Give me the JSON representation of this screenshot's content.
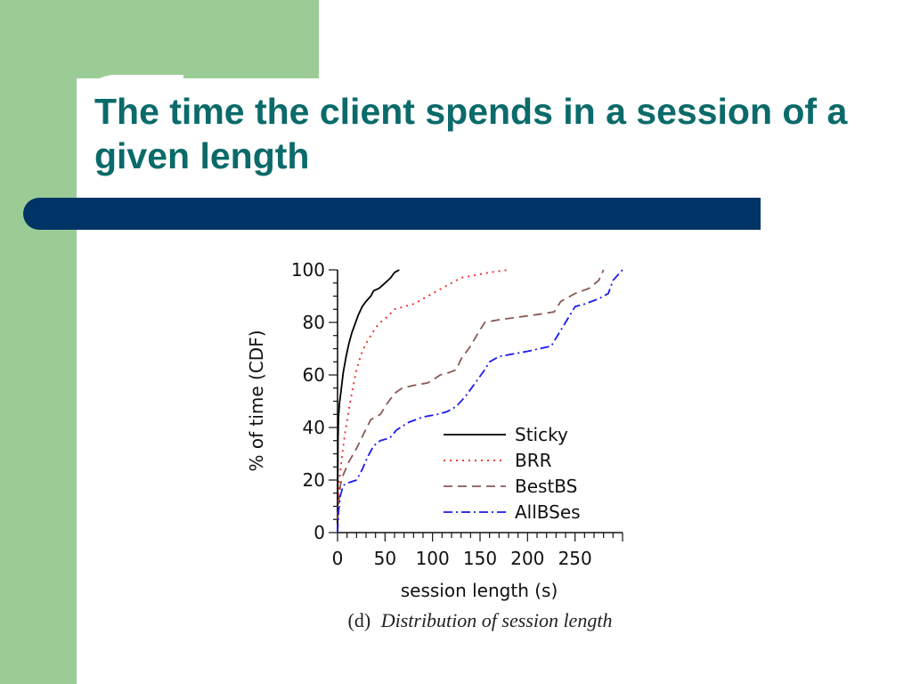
{
  "slide": {
    "title": "The time the client spends in a session of a given length",
    "colors": {
      "title": "#0b6a6a",
      "accent_green": "#9ccc95",
      "bar_navy": "#003466"
    }
  },
  "chart_data": {
    "type": "line",
    "xlabel": "session length (s)",
    "ylabel": "% of time (CDF)",
    "caption_prefix": "(d)",
    "caption": "Distribution of session length",
    "xlim": [
      0,
      300
    ],
    "ylim": [
      0,
      100
    ],
    "xticks": [
      0,
      50,
      100,
      150,
      200,
      250
    ],
    "xtick_labels": [
      "0",
      "50",
      "100",
      "150",
      "200",
      "250"
    ],
    "yticks": [
      0,
      20,
      40,
      60,
      80,
      100
    ],
    "ytick_labels": [
      "0",
      "20",
      "40",
      "60",
      "80",
      "100"
    ],
    "legend_position": "right",
    "series": [
      {
        "name": "Sticky",
        "color": "#000000",
        "dash": "solid",
        "points": [
          [
            0,
            0
          ],
          [
            0.5,
            35
          ],
          [
            1,
            44
          ],
          [
            2,
            49
          ],
          [
            4,
            55
          ],
          [
            6,
            61
          ],
          [
            9,
            67
          ],
          [
            12,
            72
          ],
          [
            15,
            76
          ],
          [
            18,
            79
          ],
          [
            22,
            83
          ],
          [
            26,
            86
          ],
          [
            30,
            88
          ],
          [
            35,
            90
          ],
          [
            38,
            92
          ],
          [
            44,
            93
          ],
          [
            50,
            95
          ],
          [
            56,
            97
          ],
          [
            60,
            99
          ],
          [
            65,
            100
          ]
        ]
      },
      {
        "name": "BRR",
        "color": "#ee2222",
        "dash": "dotted",
        "points": [
          [
            0,
            0
          ],
          [
            0.5,
            10
          ],
          [
            2,
            20
          ],
          [
            5,
            30
          ],
          [
            8,
            38
          ],
          [
            12,
            47
          ],
          [
            16,
            55
          ],
          [
            20,
            62
          ],
          [
            25,
            68
          ],
          [
            30,
            72
          ],
          [
            35,
            75
          ],
          [
            40,
            78
          ],
          [
            45,
            80
          ],
          [
            52,
            82
          ],
          [
            60,
            85
          ],
          [
            70,
            86
          ],
          [
            80,
            87
          ],
          [
            90,
            89
          ],
          [
            100,
            91
          ],
          [
            110,
            93
          ],
          [
            120,
            95
          ],
          [
            130,
            97
          ],
          [
            145,
            98
          ],
          [
            160,
            99
          ],
          [
            180,
            100
          ]
        ]
      },
      {
        "name": "BestBS",
        "color": "#8a5a55",
        "dash": "dashed",
        "points": [
          [
            0,
            0
          ],
          [
            1,
            10
          ],
          [
            3,
            18
          ],
          [
            6,
            22
          ],
          [
            12,
            27
          ],
          [
            20,
            32
          ],
          [
            28,
            38
          ],
          [
            35,
            43
          ],
          [
            45,
            45
          ],
          [
            52,
            49
          ],
          [
            60,
            53
          ],
          [
            68,
            55
          ],
          [
            80,
            56
          ],
          [
            95,
            57
          ],
          [
            100,
            58
          ],
          [
            108,
            60
          ],
          [
            118,
            61
          ],
          [
            125,
            62
          ],
          [
            130,
            66
          ],
          [
            140,
            71
          ],
          [
            148,
            76
          ],
          [
            155,
            80
          ],
          [
            170,
            81
          ],
          [
            190,
            82
          ],
          [
            210,
            83
          ],
          [
            228,
            84
          ],
          [
            235,
            88
          ],
          [
            250,
            91
          ],
          [
            265,
            93
          ],
          [
            275,
            96
          ],
          [
            280,
            100
          ]
        ]
      },
      {
        "name": "AllBSes",
        "color": "#1a1aee",
        "dash": "dashdot",
        "points": [
          [
            0,
            0
          ],
          [
            1,
            8
          ],
          [
            3,
            14
          ],
          [
            6,
            18
          ],
          [
            12,
            19
          ],
          [
            20,
            20
          ],
          [
            26,
            24
          ],
          [
            32,
            29
          ],
          [
            38,
            33
          ],
          [
            45,
            35
          ],
          [
            55,
            36
          ],
          [
            62,
            39
          ],
          [
            75,
            42
          ],
          [
            90,
            44
          ],
          [
            105,
            45
          ],
          [
            115,
            46
          ],
          [
            125,
            48
          ],
          [
            135,
            52
          ],
          [
            145,
            57
          ],
          [
            155,
            62
          ],
          [
            160,
            65
          ],
          [
            170,
            67
          ],
          [
            185,
            68
          ],
          [
            200,
            69
          ],
          [
            225,
            71
          ],
          [
            230,
            74
          ],
          [
            240,
            80
          ],
          [
            250,
            86
          ],
          [
            260,
            87
          ],
          [
            275,
            89
          ],
          [
            285,
            91
          ],
          [
            290,
            96
          ],
          [
            300,
            100
          ]
        ]
      }
    ]
  }
}
